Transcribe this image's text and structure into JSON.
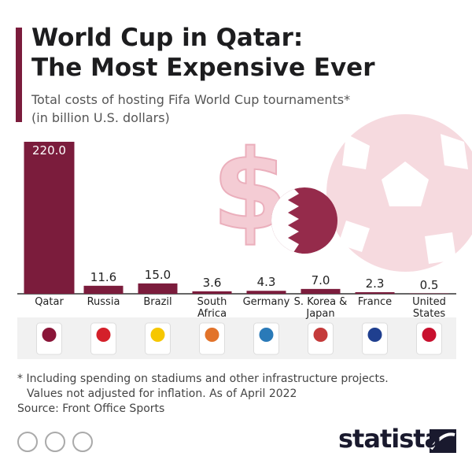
{
  "chart_data": {
    "type": "bar",
    "title": [
      "World Cup in Qatar:",
      "The Most Expensive Ever"
    ],
    "subtitle": [
      "Total costs of hosting Fifa World Cup tournaments*",
      "(in billion U.S. dollars)"
    ],
    "categories": [
      "Qatar",
      "Russia",
      "Brazil",
      "South Africa",
      "Germany",
      "S. Korea & Japan",
      "France",
      "United States"
    ],
    "values": [
      220.0,
      11.6,
      15.0,
      3.6,
      4.3,
      7.0,
      2.3,
      0.5
    ],
    "value_labels": [
      "220.0",
      "11.6",
      "15.0",
      "3.6",
      "4.3",
      "7.0",
      "2.3",
      "0.5"
    ],
    "color": "#7b1c3c",
    "note": "* Including spending on stadiums and other infrastructure projects. Values not adjusted for inflation. As of April 2022",
    "source": "Source: Front Office Sports",
    "brand": "statista"
  }
}
